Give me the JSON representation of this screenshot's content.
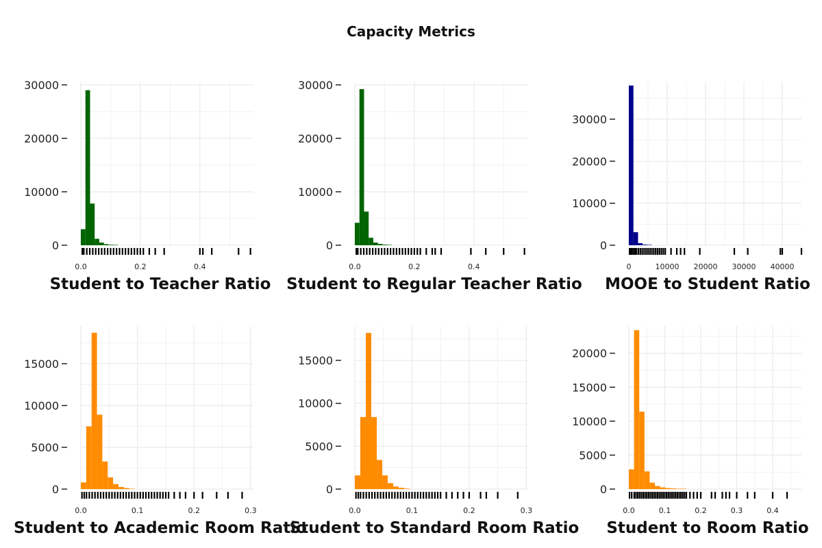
{
  "title": "Capacity Metrics",
  "colors": {
    "green": "#006400",
    "blue": "#00008b",
    "orange": "#ff8c00",
    "rug": "#000000",
    "grid": "#e6e6e6"
  },
  "chart_data": [
    {
      "type": "bar",
      "xlabel": "Student to Teacher Ratio",
      "ylabel": "",
      "color": "#006400",
      "xlim": [
        0,
        0.58
      ],
      "ylim": [
        0,
        30500
      ],
      "xticks": [
        0,
        0.2,
        0.4
      ],
      "xtick_labels": [
        "0.0",
        "0.2",
        "0.4"
      ],
      "yticks": [
        0,
        10000,
        20000,
        30000
      ],
      "ytick_labels": [
        "0",
        "10000",
        "20000",
        "30000"
      ],
      "bin_width": 0.0155,
      "bins": [
        0,
        0.0155,
        0.031,
        0.0465,
        0.062,
        0.0775,
        0.093,
        0.1085
      ],
      "values": [
        3000,
        29000,
        7800,
        1200,
        500,
        200,
        100,
        50
      ],
      "rug": [
        0.005,
        0.01,
        0.02,
        0.03,
        0.04,
        0.05,
        0.06,
        0.07,
        0.08,
        0.09,
        0.1,
        0.11,
        0.12,
        0.13,
        0.14,
        0.15,
        0.16,
        0.17,
        0.18,
        0.19,
        0.2,
        0.21,
        0.23,
        0.25,
        0.28,
        0.4,
        0.41,
        0.44,
        0.53,
        0.57
      ]
    },
    {
      "type": "bar",
      "xlabel": "Student to Regular Teacher Ratio",
      "ylabel": "",
      "color": "#006400",
      "xlim": [
        0,
        0.58
      ],
      "ylim": [
        0,
        30500
      ],
      "xticks": [
        0,
        0.2,
        0.4
      ],
      "xtick_labels": [
        "0.0",
        "0.2",
        "0.4"
      ],
      "yticks": [
        0,
        10000,
        20000,
        30000
      ],
      "ytick_labels": [
        "0",
        "10000",
        "20000",
        "30000"
      ],
      "bin_width": 0.0155,
      "bins": [
        0,
        0.0155,
        0.031,
        0.0465,
        0.062,
        0.0775,
        0.093,
        0.1085
      ],
      "values": [
        4200,
        29200,
        6300,
        1400,
        500,
        250,
        120,
        60
      ],
      "rug": [
        0.005,
        0.01,
        0.02,
        0.03,
        0.04,
        0.05,
        0.06,
        0.07,
        0.08,
        0.09,
        0.1,
        0.11,
        0.12,
        0.13,
        0.14,
        0.15,
        0.16,
        0.17,
        0.18,
        0.19,
        0.2,
        0.21,
        0.22,
        0.24,
        0.26,
        0.27,
        0.29,
        0.39,
        0.44,
        0.5,
        0.57
      ]
    },
    {
      "type": "bar",
      "xlabel": "MOOE to Student Ratio",
      "ylabel": "",
      "color": "#00008b",
      "xlim": [
        0,
        45000
      ],
      "ylim": [
        0,
        38800
      ],
      "xticks": [
        0,
        10000,
        20000,
        30000,
        40000
      ],
      "xtick_labels": [
        "0",
        "10000",
        "20000",
        "30000",
        "40000"
      ],
      "yticks": [
        0,
        10000,
        20000,
        30000
      ],
      "ytick_labels": [
        "0",
        "10000",
        "20000",
        "30000"
      ],
      "bin_width": 1200,
      "bins": [
        0,
        1200,
        2400,
        3600,
        4800
      ],
      "values": [
        38000,
        3100,
        500,
        150,
        60
      ],
      "rug": [
        200,
        500,
        800,
        1200,
        1600,
        2000,
        2500,
        3000,
        3500,
        4000,
        4500,
        5000,
        5500,
        6000,
        6500,
        7000,
        7500,
        8000,
        8500,
        9000,
        9500,
        11000,
        12500,
        13500,
        14500,
        18500,
        27500,
        31000,
        39500,
        40000,
        45000
      ]
    },
    {
      "type": "bar",
      "xlabel": "Student to Academic Room Ratio",
      "ylabel": "",
      "color": "#ff8c00",
      "xlim": [
        0,
        0.305
      ],
      "ylim": [
        0,
        19500
      ],
      "xticks": [
        0,
        0.1,
        0.2,
        0.3
      ],
      "xtick_labels": [
        "0.0",
        "0.1",
        "0.2",
        "0.3"
      ],
      "yticks": [
        0,
        5000,
        10000,
        15000
      ],
      "ytick_labels": [
        "0",
        "5000",
        "10000",
        "15000"
      ],
      "bin_width": 0.0095,
      "bins": [
        0,
        0.0095,
        0.019,
        0.0285,
        0.038,
        0.0475,
        0.057,
        0.0665,
        0.076,
        0.0855
      ],
      "values": [
        800,
        7500,
        18700,
        8900,
        3300,
        1400,
        600,
        250,
        120,
        50
      ],
      "rug": [
        0.002,
        0.006,
        0.01,
        0.015,
        0.02,
        0.025,
        0.03,
        0.035,
        0.04,
        0.045,
        0.05,
        0.055,
        0.06,
        0.065,
        0.07,
        0.075,
        0.08,
        0.085,
        0.09,
        0.095,
        0.1,
        0.105,
        0.11,
        0.115,
        0.12,
        0.125,
        0.13,
        0.135,
        0.14,
        0.145,
        0.15,
        0.155,
        0.165,
        0.175,
        0.185,
        0.2,
        0.215,
        0.24,
        0.26,
        0.285
      ]
    },
    {
      "type": "bar",
      "xlabel": "Student to Standard Room Ratio",
      "ylabel": "",
      "color": "#ff8c00",
      "xlim": [
        0,
        0.302
      ],
      "ylim": [
        0,
        19000
      ],
      "xticks": [
        0,
        0.1,
        0.2,
        0.3
      ],
      "xtick_labels": [
        "0.0",
        "0.1",
        "0.2",
        "0.3"
      ],
      "yticks": [
        0,
        5000,
        10000,
        15000
      ],
      "ytick_labels": [
        "0",
        "5000",
        "10000",
        "15000"
      ],
      "bin_width": 0.0096,
      "bins": [
        0,
        0.0096,
        0.0192,
        0.0288,
        0.0384,
        0.048,
        0.0576,
        0.0672,
        0.0768,
        0.0864
      ],
      "values": [
        1600,
        8400,
        18200,
        8400,
        3400,
        1600,
        700,
        300,
        150,
        60
      ],
      "rug": [
        0.002,
        0.006,
        0.01,
        0.015,
        0.02,
        0.025,
        0.03,
        0.035,
        0.04,
        0.045,
        0.05,
        0.055,
        0.06,
        0.065,
        0.07,
        0.075,
        0.08,
        0.085,
        0.09,
        0.095,
        0.1,
        0.105,
        0.11,
        0.115,
        0.12,
        0.125,
        0.13,
        0.135,
        0.14,
        0.145,
        0.15,
        0.16,
        0.17,
        0.18,
        0.19,
        0.2,
        0.22,
        0.23,
        0.25,
        0.285
      ]
    },
    {
      "type": "bar",
      "xlabel": "Student to Room Ratio",
      "ylabel": "",
      "color": "#ff8c00",
      "xlim": [
        0,
        0.48
      ],
      "ylim": [
        0,
        24000
      ],
      "xticks": [
        0,
        0.1,
        0.2,
        0.3,
        0.4
      ],
      "xtick_labels": [
        "0.0",
        "0.1",
        "0.2",
        "0.3",
        "0.4"
      ],
      "yticks": [
        0,
        5000,
        10000,
        15000,
        20000
      ],
      "ytick_labels": [
        "0",
        "5000",
        "10000",
        "15000",
        "20000"
      ],
      "bin_width": 0.0145,
      "bins": [
        0,
        0.0145,
        0.029,
        0.0435,
        0.058,
        0.0725,
        0.087,
        0.1015,
        0.116,
        0.1305,
        0.145
      ],
      "values": [
        2900,
        23400,
        11400,
        2600,
        950,
        450,
        250,
        150,
        100,
        60,
        40
      ],
      "rug": [
        0.002,
        0.008,
        0.015,
        0.02,
        0.025,
        0.03,
        0.035,
        0.04,
        0.045,
        0.05,
        0.055,
        0.06,
        0.065,
        0.07,
        0.075,
        0.08,
        0.085,
        0.09,
        0.095,
        0.1,
        0.105,
        0.11,
        0.115,
        0.12,
        0.125,
        0.13,
        0.135,
        0.14,
        0.145,
        0.15,
        0.155,
        0.16,
        0.17,
        0.18,
        0.19,
        0.2,
        0.23,
        0.24,
        0.26,
        0.27,
        0.28,
        0.3,
        0.33,
        0.35,
        0.4,
        0.44
      ]
    }
  ]
}
